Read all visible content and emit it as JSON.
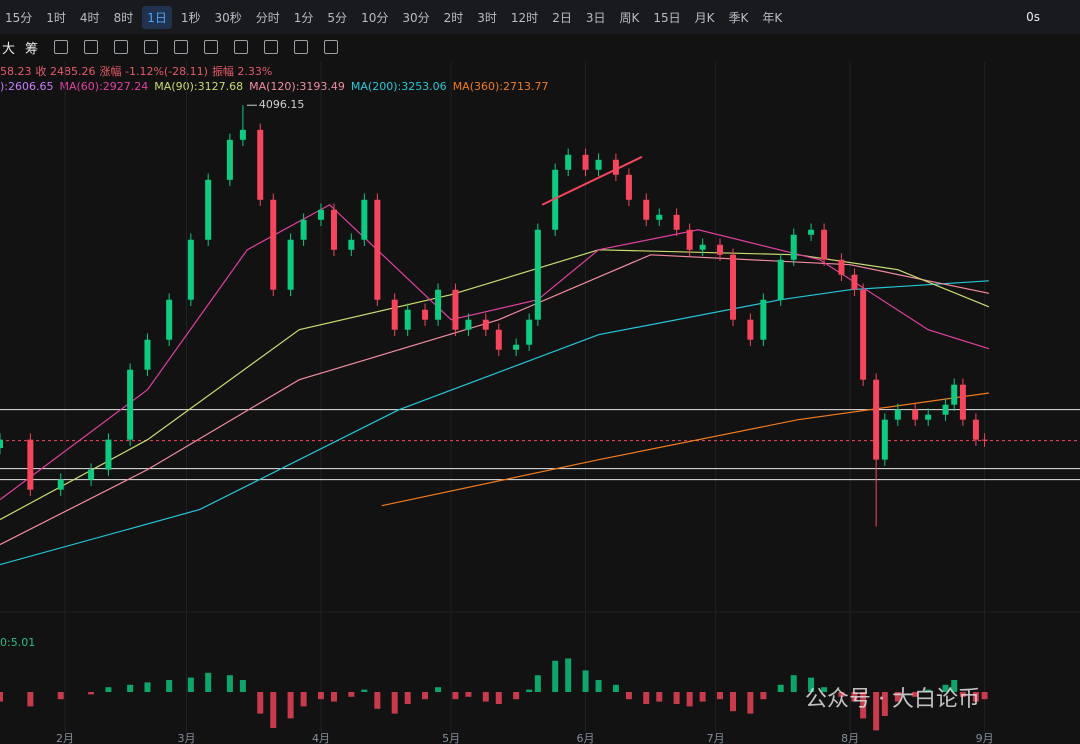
{
  "toolbar": {
    "intervals": [
      "15分",
      "1时",
      "4时",
      "8时",
      "1日",
      "1秒",
      "30秒",
      "分时",
      "1分",
      "5分",
      "10分",
      "30分",
      "2时",
      "3时",
      "12时",
      "2日",
      "3日",
      "周K",
      "15日",
      "月K",
      "季K",
      "年K"
    ],
    "active": 4,
    "right": "0s",
    "tools": [
      "大",
      "筹"
    ]
  },
  "quote": [
    "58.23",
    "收 2485.26",
    "涨幅 -1.12%(-28.11)",
    "振幅 2.33%"
  ],
  "chart_data": {
    "type": "candlestick",
    "ma_legend": [
      {
        "text": "):2606.65",
        "color": "#c77dff"
      },
      {
        "text": "MA(60):2927.24",
        "color": "#e040a0"
      },
      {
        "text": "MA(90):3127.68",
        "color": "#c8dc6e"
      },
      {
        "text": "MA(120):3193.49",
        "color": "#f08ca0"
      },
      {
        "text": "MA(200):3253.06",
        "color": "#26c6da"
      },
      {
        "text": "MA(360):2713.77",
        "color": "#f07b1e"
      }
    ],
    "x": [
      16,
      23,
      30,
      37,
      41,
      46,
      50,
      55,
      60,
      64,
      69,
      72,
      76,
      79,
      83,
      86,
      90,
      93,
      97,
      100,
      103,
      107,
      110,
      114,
      117,
      121,
      124,
      128,
      131,
      135,
      138,
      140,
      144,
      147,
      151,
      154,
      158,
      161,
      165,
      168,
      172,
      175,
      178,
      182,
      185,
      189,
      192,
      196,
      199,
      203,
      206,
      210,
      213,
      215,
      218,
      220,
      223,
      227,
      230,
      234,
      236,
      238,
      241,
      243
    ],
    "open": [
      2450,
      2490,
      2250,
      2298,
      2346,
      2490,
      2826,
      2970,
      3162,
      3450,
      3738,
      3930,
      3978,
      3642,
      3210,
      3450,
      3546,
      3594,
      3402,
      3450,
      3642,
      3162,
      3018,
      3114,
      3066,
      3210,
      3018,
      3066,
      3018,
      2922,
      2946,
      3066,
      3498,
      3786,
      3858,
      3786,
      3834,
      3762,
      3642,
      3546,
      3570,
      3498,
      3402,
      3426,
      3378,
      3066,
      2970,
      3162,
      3354,
      3474,
      3498,
      3354,
      3282,
      3210,
      2778,
      2394,
      2586,
      2634,
      2586,
      2610,
      2658,
      2754,
      2586,
      2490
    ],
    "high": [
      2520,
      2520,
      2328,
      2376,
      2520,
      2856,
      3000,
      3192,
      3480,
      3768,
      3960,
      4096.15,
      4008,
      3672,
      3480,
      3576,
      3624,
      3624,
      3480,
      3672,
      3672,
      3192,
      3144,
      3144,
      3240,
      3240,
      3096,
      3096,
      3048,
      2976,
      3096,
      3528,
      3816,
      3888,
      3888,
      3864,
      3864,
      3792,
      3672,
      3600,
      3600,
      3528,
      3456,
      3456,
      3408,
      3096,
      3192,
      3384,
      3504,
      3528,
      3528,
      3384,
      3312,
      3240,
      2808,
      2616,
      2664,
      2664,
      2640,
      2688,
      2784,
      2784,
      2616,
      2520
    ],
    "low": [
      2420,
      2220,
      2220,
      2268,
      2316,
      2460,
      2796,
      2940,
      3132,
      3420,
      3708,
      3900,
      3612,
      3180,
      3180,
      3420,
      3516,
      3372,
      3372,
      3420,
      3132,
      2988,
      2988,
      3036,
      3036,
      2988,
      2988,
      2988,
      2892,
      2892,
      2916,
      3036,
      3468,
      3756,
      3756,
      3756,
      3732,
      3612,
      3516,
      3516,
      3468,
      3372,
      3372,
      3348,
      3036,
      2940,
      2940,
      3132,
      3324,
      3444,
      3324,
      3252,
      3180,
      2748,
      2073,
      2364,
      2556,
      2556,
      2556,
      2580,
      2628,
      2556,
      2460,
      2455
    ],
    "close": [
      2490,
      2250,
      2298,
      2346,
      2490,
      2826,
      2970,
      3162,
      3450,
      3738,
      3930,
      3978,
      3642,
      3210,
      3450,
      3546,
      3594,
      3402,
      3450,
      3642,
      3162,
      3018,
      3114,
      3066,
      3210,
      3018,
      3066,
      3018,
      2922,
      2946,
      3066,
      3498,
      3786,
      3858,
      3786,
      3834,
      3762,
      3642,
      3546,
      3570,
      3498,
      3402,
      3426,
      3378,
      3066,
      2970,
      3162,
      3354,
      3474,
      3498,
      3354,
      3282,
      3210,
      2778,
      2394,
      2586,
      2634,
      2586,
      2610,
      2658,
      2754,
      2586,
      2490,
      2485.26
    ],
    "up_color": "#0ecb81",
    "down_color": "#f6465d",
    "high_annotation": {
      "index": 11,
      "label": "4096.15"
    },
    "ma_lines": [
      {
        "color": "#26c6da",
        "x": [
          16,
          62,
          108,
          154,
          196,
          212,
          244
        ],
        "values": [
          1890,
          2154,
          2634,
          2994,
          3162,
          3210,
          3253
        ]
      },
      {
        "color": "#f07b1e",
        "x": [
          104,
          154,
          200,
          244
        ],
        "values": [
          2173,
          2394,
          2586,
          2714
        ]
      },
      {
        "color": "#f08ca0",
        "x": [
          16,
          50,
          85,
          131,
          166,
          212,
          244
        ],
        "values": [
          1986,
          2346,
          2778,
          3066,
          3378,
          3330,
          3193
        ]
      },
      {
        "color": "#c8dc6e",
        "x": [
          16,
          50,
          85,
          120,
          154,
          200,
          223,
          244
        ],
        "values": [
          2106,
          2490,
          3018,
          3186,
          3402,
          3378,
          3306,
          3128
        ]
      },
      {
        "color": "#e040a0",
        "x": [
          16,
          50,
          73,
          92,
          120,
          140,
          154,
          177,
          205,
          230,
          244
        ],
        "values": [
          2202,
          2730,
          3402,
          3618,
          3066,
          3162,
          3402,
          3498,
          3354,
          3018,
          2927
        ]
      }
    ],
    "levels": [
      2634,
      2351,
      2298
    ],
    "current_price": 2485.26,
    "trendline": {
      "x": [
        141,
        164
      ],
      "values": [
        3618,
        3848
      ],
      "color": "#f6465d"
    },
    "xlim": [
      16,
      265
    ],
    "ylim": [
      1720,
      4150
    ],
    "xticks": [
      {
        "value": 31,
        "label": "2月"
      },
      {
        "value": 59,
        "label": "3月"
      },
      {
        "value": 90,
        "label": "4月"
      },
      {
        "value": 120,
        "label": "5月"
      },
      {
        "value": 151,
        "label": "6月"
      },
      {
        "value": 181,
        "label": "7月"
      },
      {
        "value": 212,
        "label": "8月"
      },
      {
        "value": 243,
        "label": "9月"
      }
    ],
    "grid": true,
    "macd": {
      "label": "0:5.01",
      "ylim": [
        -40,
        60
      ],
      "values": [
        -8,
        -12,
        -6,
        -2,
        4,
        6,
        8,
        10,
        12,
        16,
        14,
        10,
        -18,
        -30,
        -22,
        -12,
        -6,
        -8,
        -4,
        2,
        -14,
        -18,
        -10,
        -6,
        4,
        -6,
        -4,
        -8,
        -10,
        -6,
        2,
        14,
        26,
        28,
        18,
        10,
        6,
        -6,
        -10,
        -8,
        -10,
        -12,
        -8,
        -6,
        -16,
        -18,
        -6,
        6,
        14,
        12,
        4,
        -4,
        -8,
        -22,
        -32,
        -20,
        -8,
        -4,
        2,
        6,
        10,
        -4,
        -8,
        -6
      ]
    },
    "watermark": "公众号 · 大白论币"
  }
}
